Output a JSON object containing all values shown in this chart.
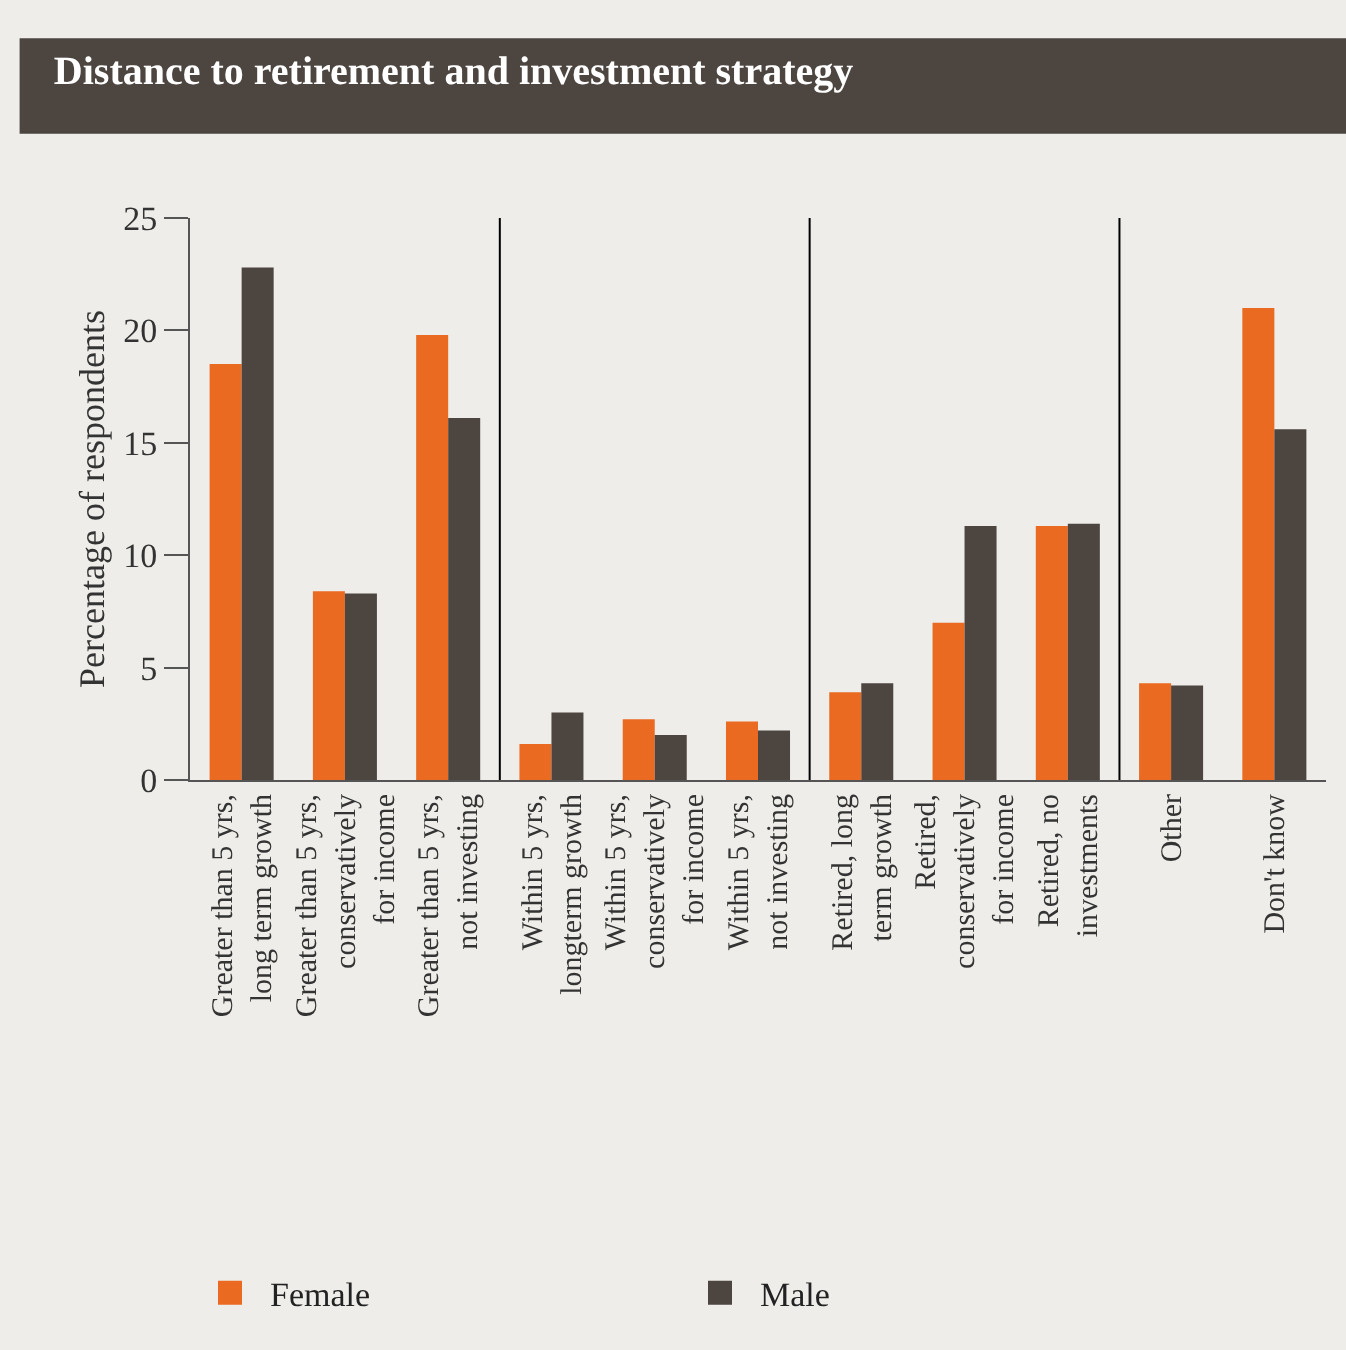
{
  "chart_data": {
    "type": "bar",
    "title": "Distance to retirement and investment strategy",
    "ylabel": "Percentage of respondents",
    "categories": [
      "Greater than 5 yrs,\nlong term growth",
      "Greater than 5 yrs,\nconservatively\nfor income",
      "Greater than 5 yrs,\nnot investing",
      "Within 5 yrs,\nlongterm growth",
      "Within 5 yrs,\nconservatively\nfor income",
      "Within 5 yrs,\nnot investing",
      "Retired, long\nterm growth",
      "Retired,\nconservatively\nfor income",
      "Retired, no\ninvestments",
      "Other",
      "Don't know"
    ],
    "series": [
      {
        "name": "Female",
        "color": "#e96a20",
        "values": [
          18.5,
          8.4,
          19.8,
          1.6,
          2.7,
          2.6,
          3.9,
          7.0,
          11.3,
          4.3,
          21.0
        ]
      },
      {
        "name": "Male",
        "color": "#4d4540",
        "values": [
          22.8,
          8.3,
          16.1,
          3.0,
          2.0,
          2.2,
          4.3,
          11.3,
          11.4,
          4.2,
          15.6
        ]
      }
    ],
    "ylim": [
      0,
      25
    ],
    "yticks": [
      0,
      5,
      10,
      15,
      20,
      25
    ],
    "grid": false,
    "legend": "bottom"
  }
}
